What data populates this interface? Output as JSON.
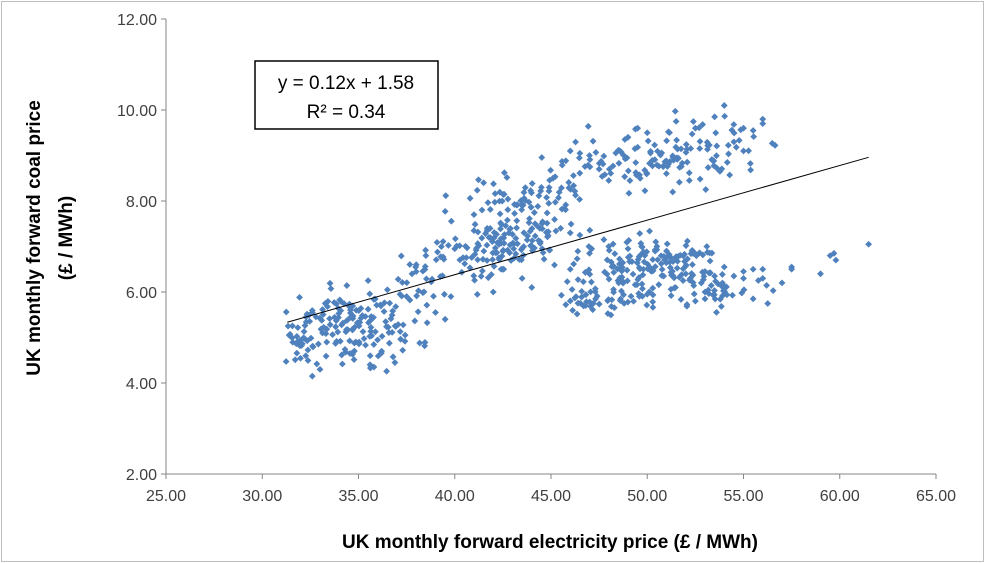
{
  "chart_data": {
    "type": "scatter",
    "title": "",
    "xlabel": "UK monthly forward electricity price (£ / MWh)",
    "ylabel_lines": [
      "UK monthly forward coal price",
      "(£ / MWh)"
    ],
    "xlim": [
      25,
      65
    ],
    "ylim": [
      2,
      12
    ],
    "x_ticks": [
      "25.00",
      "30.00",
      "35.00",
      "40.00",
      "45.00",
      "50.00",
      "55.00",
      "60.00",
      "65.00"
    ],
    "y_ticks": [
      "2.00",
      "4.00",
      "6.00",
      "8.00",
      "10.00",
      "12.00"
    ],
    "marker_color": "#4f81bd",
    "grid": false,
    "trendline": {
      "slope": 0.12,
      "intercept": 1.58,
      "x_start": 31.3,
      "x_end": 61.5,
      "color": "#000000"
    },
    "equation_box": {
      "line1": "y = 0.12x + 1.58",
      "line2": "R² = 0.34"
    },
    "clusters": [
      {
        "cx": 32.0,
        "cy": 4.85,
        "sx": 0.6,
        "sy": 0.25,
        "n": 30
      },
      {
        "cx": 34.5,
        "cy": 5.0,
        "sx": 1.2,
        "sy": 0.35,
        "n": 70
      },
      {
        "cx": 34.5,
        "cy": 5.6,
        "sx": 1.0,
        "sy": 0.3,
        "n": 45
      },
      {
        "cx": 37.0,
        "cy": 5.3,
        "sx": 1.0,
        "sy": 0.35,
        "n": 35
      },
      {
        "cx": 38.5,
        "cy": 6.4,
        "sx": 0.9,
        "sy": 0.35,
        "n": 25
      },
      {
        "cx": 40.5,
        "cy": 6.95,
        "sx": 1.0,
        "sy": 0.2,
        "n": 35
      },
      {
        "cx": 42.0,
        "cy": 6.9,
        "sx": 0.8,
        "sy": 0.4,
        "n": 45
      },
      {
        "cx": 43.8,
        "cy": 7.4,
        "sx": 1.0,
        "sy": 0.45,
        "n": 85
      },
      {
        "cx": 42.5,
        "cy": 8.1,
        "sx": 1.2,
        "sy": 0.25,
        "n": 25
      },
      {
        "cx": 45.5,
        "cy": 8.35,
        "sx": 1.0,
        "sy": 0.2,
        "n": 18
      },
      {
        "cx": 47.5,
        "cy": 8.9,
        "sx": 1.4,
        "sy": 0.25,
        "n": 35
      },
      {
        "cx": 50.5,
        "cy": 8.9,
        "sx": 1.2,
        "sy": 0.3,
        "n": 45
      },
      {
        "cx": 53.5,
        "cy": 9.2,
        "sx": 1.2,
        "sy": 0.35,
        "n": 40
      },
      {
        "cx": 52.5,
        "cy": 8.65,
        "sx": 1.0,
        "sy": 0.15,
        "n": 15
      },
      {
        "cx": 47.0,
        "cy": 5.85,
        "sx": 0.8,
        "sy": 0.2,
        "n": 30
      },
      {
        "cx": 48.5,
        "cy": 6.5,
        "sx": 1.0,
        "sy": 0.3,
        "n": 55
      },
      {
        "cx": 50.8,
        "cy": 6.5,
        "sx": 1.2,
        "sy": 0.3,
        "n": 70
      },
      {
        "cx": 52.0,
        "cy": 6.7,
        "sx": 0.8,
        "sy": 0.2,
        "n": 25
      },
      {
        "cx": 54.0,
        "cy": 6.05,
        "sx": 1.2,
        "sy": 0.15,
        "n": 35
      },
      {
        "cx": 49.0,
        "cy": 5.9,
        "sx": 1.0,
        "sy": 0.15,
        "n": 20
      }
    ],
    "points": [
      [
        31.4,
        5.05
      ],
      [
        32.6,
        4.15
      ],
      [
        33.0,
        4.3
      ],
      [
        35.6,
        4.4
      ],
      [
        36.2,
        4.7
      ],
      [
        35.5,
        6.25
      ],
      [
        36.5,
        6.05
      ],
      [
        37.5,
        5.9
      ],
      [
        38.0,
        6.6
      ],
      [
        38.5,
        6.8
      ],
      [
        39.0,
        5.55
      ],
      [
        39.5,
        5.4
      ],
      [
        39.8,
        5.9
      ],
      [
        40.0,
        6.95
      ],
      [
        41.0,
        7.7
      ],
      [
        41.5,
        8.4
      ],
      [
        41.0,
        7.35
      ],
      [
        42.0,
        6.0
      ],
      [
        42.5,
        6.5
      ],
      [
        43.5,
        6.3
      ],
      [
        44.0,
        6.1
      ],
      [
        44.5,
        8.3
      ],
      [
        45.5,
        7.4
      ],
      [
        46.0,
        7.3
      ],
      [
        46.0,
        9.1
      ],
      [
        46.5,
        9.05
      ],
      [
        47.0,
        9.0
      ],
      [
        47.5,
        8.7
      ],
      [
        48.0,
        8.45
      ],
      [
        49.0,
        9.4
      ],
      [
        49.5,
        9.6
      ],
      [
        50.0,
        9.5
      ],
      [
        51.5,
        9.75
      ],
      [
        52.5,
        9.6
      ],
      [
        53.5,
        9.85
      ],
      [
        54.0,
        10.1
      ],
      [
        55.0,
        9.6
      ],
      [
        55.5,
        9.55
      ],
      [
        56.0,
        9.8
      ],
      [
        56.0,
        9.7
      ],
      [
        55.0,
        9.1
      ],
      [
        54.5,
        9.3
      ],
      [
        46.5,
        7.25
      ],
      [
        46.0,
        6.5
      ],
      [
        47.0,
        6.85
      ],
      [
        48.0,
        7.0
      ],
      [
        49.0,
        6.95
      ],
      [
        50.5,
        7.0
      ],
      [
        51.0,
        6.9
      ],
      [
        52.0,
        6.4
      ],
      [
        53.0,
        6.45
      ],
      [
        53.0,
        6.0
      ],
      [
        54.5,
        6.35
      ],
      [
        55.0,
        6.3
      ],
      [
        55.5,
        6.5
      ],
      [
        56.0,
        6.3
      ],
      [
        56.0,
        6.5
      ],
      [
        57.0,
        6.2
      ],
      [
        57.5,
        6.5
      ],
      [
        57.5,
        6.55
      ],
      [
        59.0,
        6.4
      ],
      [
        59.5,
        6.8
      ],
      [
        59.7,
        6.85
      ],
      [
        59.8,
        6.7
      ],
      [
        61.5,
        7.05
      ],
      [
        46.8,
        5.7
      ],
      [
        47.2,
        5.75
      ],
      [
        48.8,
        5.75
      ],
      [
        52.5,
        5.8
      ],
      [
        53.0,
        5.85
      ],
      [
        55.5,
        5.85
      ],
      [
        53.5,
        6.35
      ],
      [
        54.0,
        6.55
      ],
      [
        55.0,
        6.45
      ],
      [
        50.0,
        5.95
      ]
    ]
  }
}
